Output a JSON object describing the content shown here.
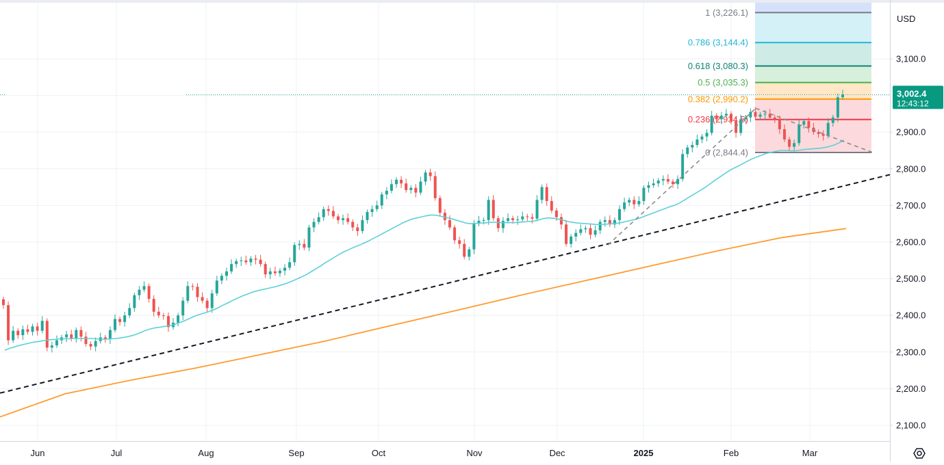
{
  "currency": "USD",
  "price_badge": {
    "price": "3,002.4",
    "countdown": "12:43:12",
    "color": "#089981"
  },
  "settings_icon": "gear-icon",
  "colors": {
    "up": "#26a69a",
    "down": "#ef5350",
    "ma_fast": "#5bd0d8",
    "ma_slow": "#ff9a2e",
    "trendline": "#131722",
    "pattern": "#8a8a8a",
    "grid": "#eef0f3"
  },
  "chart_data": {
    "type": "candlestick",
    "ylim": [
      2070,
      3245
    ],
    "y_ticks": [
      "2,100.0",
      "2,200.0",
      "2,300.0",
      "2,400.0",
      "2,500.0",
      "2,600.0",
      "2,700.0",
      "2,800.0",
      "2,900.0",
      "3,000.0",
      "3,100.0"
    ],
    "x_ticks": [
      "Jun",
      "Jul",
      "Aug",
      "Sep",
      "Oct",
      "Nov",
      "Dec",
      "2025",
      "Feb",
      "Mar"
    ],
    "last_price": 3002.4,
    "candles_close": [
      2428,
      2332,
      2358,
      2346,
      2362,
      2355,
      2370,
      2358,
      2385,
      2312,
      2318,
      2332,
      2340,
      2348,
      2336,
      2360,
      2342,
      2322,
      2315,
      2330,
      2340,
      2335,
      2360,
      2390,
      2382,
      2400,
      2420,
      2455,
      2470,
      2480,
      2445,
      2410,
      2400,
      2398,
      2368,
      2380,
      2400,
      2440,
      2480,
      2478,
      2450,
      2440,
      2420,
      2460,
      2495,
      2508,
      2520,
      2540,
      2548,
      2550,
      2545,
      2555,
      2552,
      2540,
      2512,
      2520,
      2515,
      2522,
      2530,
      2545,
      2592,
      2595,
      2585,
      2640,
      2655,
      2668,
      2690,
      2685,
      2670,
      2660,
      2665,
      2655,
      2640,
      2630,
      2660,
      2682,
      2690,
      2700,
      2730,
      2740,
      2758,
      2770,
      2760,
      2742,
      2748,
      2735,
      2765,
      2790,
      2780,
      2720,
      2680,
      2660,
      2640,
      2605,
      2595,
      2560,
      2580,
      2650,
      2658,
      2660,
      2715,
      2665,
      2638,
      2658,
      2665,
      2660,
      2662,
      2670,
      2668,
      2664,
      2715,
      2750,
      2712,
      2686,
      2668,
      2648,
      2595,
      2615,
      2625,
      2635,
      2638,
      2620,
      2632,
      2655,
      2660,
      2648,
      2660,
      2690,
      2708,
      2715,
      2703,
      2712,
      2748,
      2755,
      2760,
      2768,
      2772,
      2765,
      2758,
      2772,
      2840,
      2858,
      2865,
      2880,
      2888,
      2898,
      2945,
      2935,
      2945,
      2950,
      2930,
      2898,
      2935,
      2940,
      2955,
      2942,
      2948,
      2950,
      2940,
      2935,
      2908,
      2880,
      2860,
      2870,
      2920,
      2930,
      2912,
      2900,
      2895,
      2890,
      2925,
      2940,
      2995,
      3002.4
    ],
    "series": [
      {
        "name": "MA",
        "values": [
          2305,
          2310,
          2314,
          2318,
          2321,
          2324,
          2327,
          2329,
          2331,
          2333,
          2334,
          2335,
          2336,
          2336,
          2337,
          2337,
          2337,
          2337,
          2337,
          2336,
          2335,
          2335,
          2336,
          2337,
          2339,
          2341,
          2344,
          2348,
          2353,
          2359,
          2363,
          2366,
          2368,
          2370,
          2372,
          2375,
          2380,
          2385,
          2391,
          2397,
          2402,
          2406,
          2410,
          2415,
          2421,
          2428,
          2434,
          2441,
          2447,
          2453,
          2458,
          2463,
          2467,
          2470,
          2473,
          2476,
          2479,
          2483,
          2487,
          2492,
          2498,
          2504,
          2510,
          2518,
          2526,
          2534,
          2543,
          2551,
          2559,
          2567,
          2574,
          2580,
          2586,
          2591,
          2597,
          2603,
          2610,
          2617,
          2624,
          2631,
          2638,
          2645,
          2652,
          2658,
          2663,
          2666,
          2669,
          2672,
          2674,
          2673,
          2670,
          2667,
          2664,
          2660,
          2656,
          2652,
          2650,
          2651,
          2652,
          2652,
          2654,
          2654,
          2653,
          2653,
          2653,
          2653,
          2654,
          2655,
          2656,
          2657,
          2660,
          2664,
          2666,
          2665,
          2663,
          2660,
          2656,
          2654,
          2652,
          2651,
          2650,
          2649,
          2648,
          2648,
          2649,
          2650,
          2651,
          2653,
          2656,
          2659,
          2662,
          2666,
          2671,
          2676,
          2681,
          2686,
          2691,
          2696,
          2700,
          2706,
          2714,
          2722,
          2730,
          2738,
          2746,
          2755,
          2765,
          2774,
          2783,
          2792,
          2800,
          2806,
          2813,
          2820,
          2827,
          2832,
          2837,
          2842,
          2845,
          2848,
          2850,
          2850,
          2849,
          2849,
          2851,
          2853,
          2854,
          2855,
          2856,
          2858,
          2861,
          2865,
          2871,
          2878
        ]
      },
      {
        "name": "MA",
        "values": [
          2123,
          2186,
          2223,
          2256,
          2293,
          2330,
          2372,
          2413,
          2455,
          2495,
          2535,
          2575,
          2612,
          2637
        ]
      }
    ],
    "trendline": {
      "from": [
        "May 31",
        2188
      ],
      "to": [
        "Mar 18",
        2784
      ]
    },
    "pattern_lines": [
      {
        "from": [
          "Dec 20",
          2592
        ],
        "to": [
          "Feb 11",
          2965
        ]
      },
      {
        "from": [
          "Feb 11",
          2965
        ],
        "to": [
          "Mar 19",
          2845
        ]
      }
    ],
    "fibonacci": [
      {
        "ratio": "1",
        "price": "3,226.1",
        "label": "1 (3,226.1)",
        "color": "#787b86",
        "fill": "#dedfe2"
      },
      {
        "ratio": "0.786",
        "price": "3,144.4",
        "label": "0.786 (3,144.4)",
        "color": "#22b5d6",
        "fill": "#d3f1f6"
      },
      {
        "ratio": "0.618",
        "price": "3,080.3",
        "label": "0.618 (3,080.3)",
        "color": "#0f8376",
        "fill": "#cfebe6"
      },
      {
        "ratio": "0.5",
        "price": "3,035.3",
        "label": "0.5 (3,035.3)",
        "color": "#4caf50",
        "fill": "#d7f0db"
      },
      {
        "ratio": "0.382",
        "price": "2,990.2",
        "label": "0.382 (2,990.2)",
        "color": "#ff9800",
        "fill": "#ffe7c7"
      },
      {
        "ratio": "0.236",
        "price": "2,934.5",
        "label": "0.236 (2,934.5)",
        "color": "#f23645",
        "fill": "#fbd9dc"
      },
      {
        "ratio": "0",
        "price": "2,844.4",
        "label": "0 (2,844.4)",
        "color": "#787b86",
        "fill": "none"
      }
    ]
  }
}
